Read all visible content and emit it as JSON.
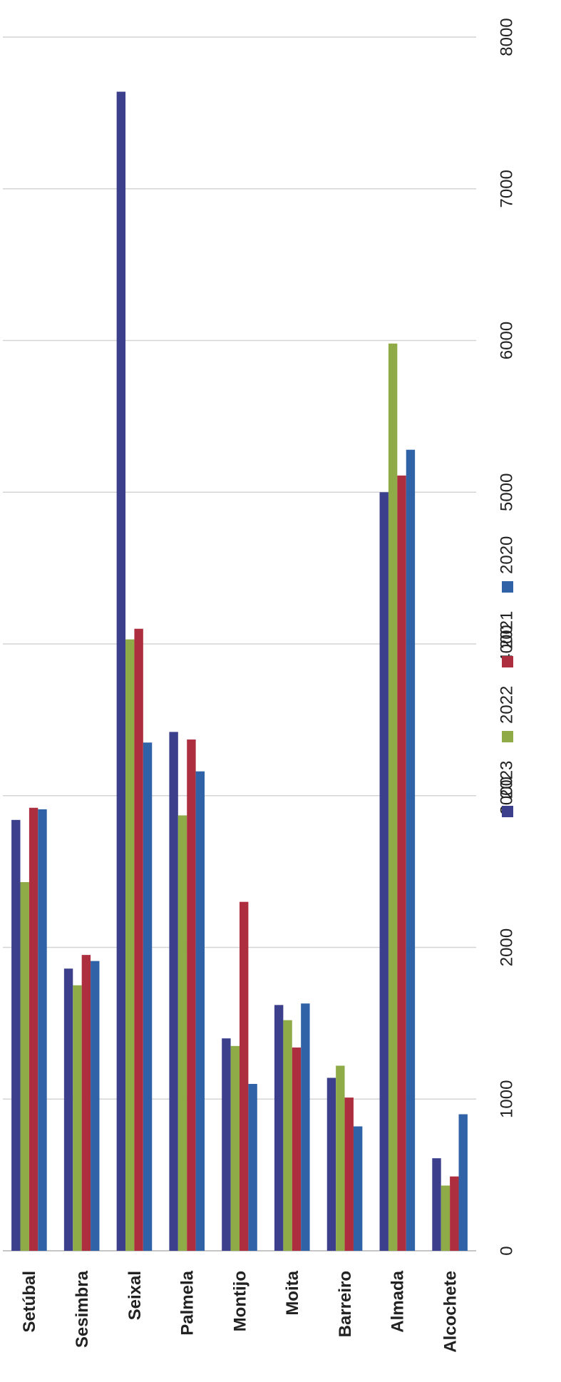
{
  "chart_data": {
    "type": "bar",
    "categories": [
      "Setúbal",
      "Sesimbra",
      "Seixal",
      "Palmela",
      "Montijo",
      "Moita",
      "Barreiro",
      "Almada",
      "Alcochete"
    ],
    "series": [
      {
        "name": "2023",
        "color": "#3b3f8c",
        "values": [
          2840,
          1860,
          7640,
          3420,
          1400,
          1620,
          1140,
          5000,
          610
        ]
      },
      {
        "name": "2022",
        "color": "#8fab47",
        "values": [
          2430,
          1750,
          4030,
          2870,
          1350,
          1520,
          1220,
          5980,
          430
        ]
      },
      {
        "name": "2021",
        "color": "#ad2f3f",
        "values": [
          2920,
          1950,
          4100,
          3370,
          2300,
          1340,
          1010,
          5110,
          490
        ]
      },
      {
        "name": "2020",
        "color": "#2f62a6",
        "values": [
          2910,
          1910,
          3350,
          3160,
          1100,
          1630,
          820,
          5280,
          900
        ]
      }
    ],
    "ylim": [
      0,
      8000
    ],
    "yticks": [
      0,
      1000,
      2000,
      3000,
      4000,
      5000,
      6000,
      7000,
      8000
    ],
    "grid": true,
    "legend": "right"
  }
}
